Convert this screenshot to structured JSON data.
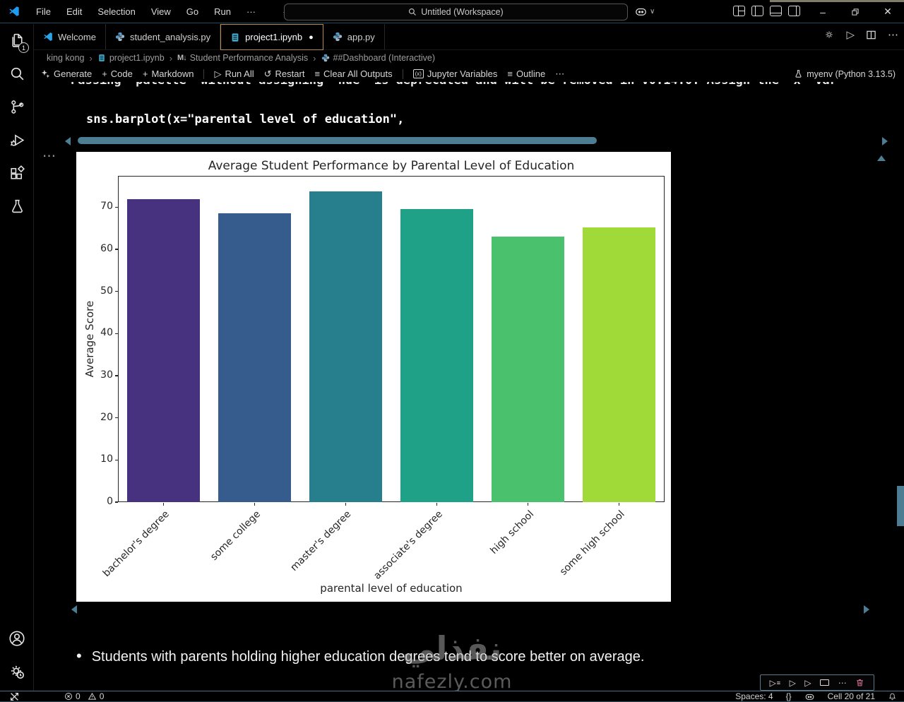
{
  "titlebar": {
    "menus": [
      "File",
      "Edit",
      "Selection",
      "View",
      "Go",
      "Run"
    ],
    "workspace": "Untitled (Workspace)"
  },
  "tabs": [
    {
      "label": "Welcome"
    },
    {
      "label": "student_analysis.py"
    },
    {
      "label": "project1.ipynb"
    },
    {
      "label": "app.py"
    }
  ],
  "breadcrumb": {
    "items": [
      "king kong",
      "project1.ipynb",
      "Student Performance Analysis",
      "##Dashboard (Interactive)"
    ]
  },
  "notebook_toolbar": {
    "generate": "Generate",
    "code": "Code",
    "markdown": "Markdown",
    "run_all": "Run All",
    "restart": "Restart",
    "clear_all_outputs": "Clear All Outputs",
    "jupyter_variables": "Jupyter Variables",
    "outline": "Outline",
    "kernel": "myenv (Python 3.13.5)"
  },
  "editor": {
    "warning_line": "Passing `palette` without assigning `hue` is deprecated and will be removed in v0.14.0. Assign the `x` var",
    "code_line": "sns.barplot(x=\"parental level of education\","
  },
  "chart_data": {
    "type": "bar",
    "title": "Average Student Performance by Parental Level of Education",
    "xlabel": "parental level of education",
    "ylabel": "Average Score",
    "categories": [
      "bachelor's degree",
      "some college",
      "master's degree",
      "associate's degree",
      "high school",
      "some high school"
    ],
    "values": [
      71.9,
      68.5,
      73.7,
      69.6,
      63.0,
      65.1
    ],
    "bar_colors": [
      "#46327e",
      "#365c8d",
      "#277f8e",
      "#1fa187",
      "#4ac16d",
      "#a0da39"
    ],
    "yticks": [
      0,
      10,
      20,
      30,
      40,
      50,
      60,
      70
    ],
    "ylim": [
      0,
      77.4
    ],
    "grid": false,
    "legend": null
  },
  "insight": {
    "bullet_text": "Students with parents holding higher education degrees tend to score better on average."
  },
  "watermark": {
    "arabic": "نفذلي",
    "site": "nafezly.com"
  },
  "statusbar": {
    "errors": "0",
    "warnings": "0",
    "spaces": "Spaces: 4",
    "braces": "{}",
    "cell": "Cell 20 of 21"
  },
  "activitybar": {
    "explorer_badge": "1"
  },
  "icons": {
    "ellipsis": "⋯",
    "menu_ellipsis": "···",
    "back": "←",
    "forward": "→",
    "chevron": "›",
    "chevron_down": "∨",
    "plus": "+",
    "play": "▷",
    "restart": "↺",
    "clear": "≡",
    "outline": "≡",
    "variables": "(x)",
    "markdown": "M↓",
    "dirty": "●",
    "bullet": "•",
    "minimize": "–",
    "close": "✕"
  }
}
